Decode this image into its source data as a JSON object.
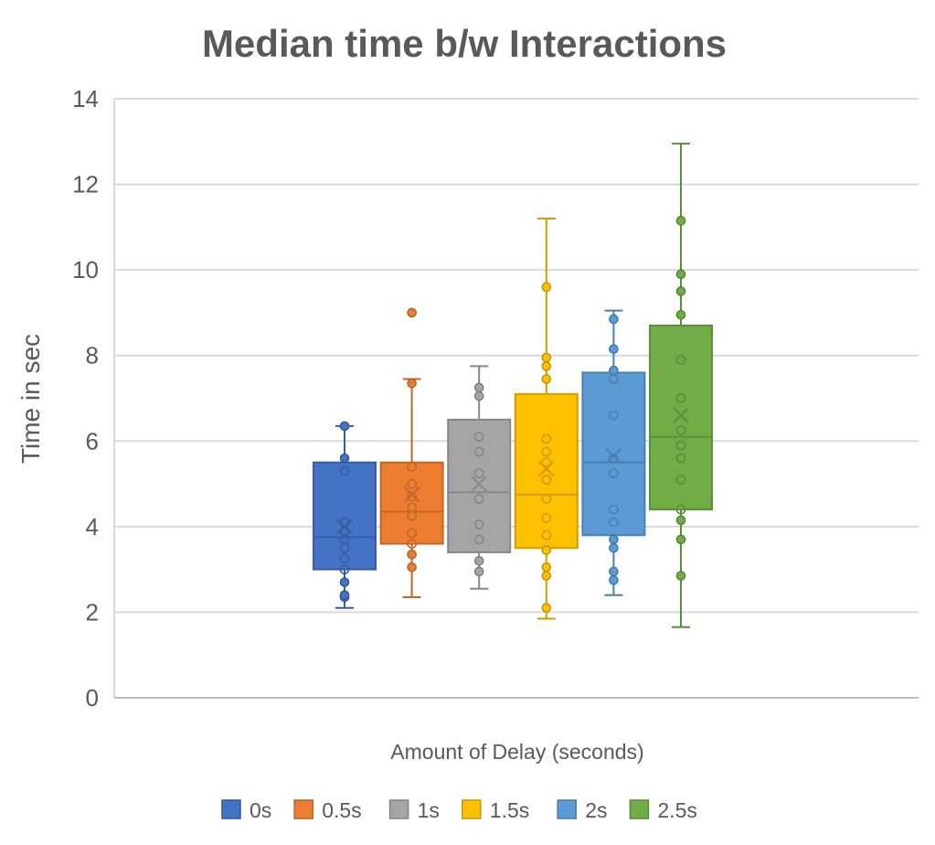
{
  "chart_data": {
    "type": "boxplot",
    "title": "Median time b/w Interactions",
    "xlabel": "Amount of Delay (seconds)",
    "ylabel": "Time in sec",
    "ylim": [
      0,
      14
    ],
    "yticks": [
      0,
      2,
      4,
      6,
      8,
      10,
      12,
      14
    ],
    "grid": true,
    "legend_position": "bottom",
    "series": [
      {
        "name": "0s",
        "color": "#4472C4",
        "whisker_low": 2.1,
        "q1": 3.0,
        "median": 3.75,
        "q3": 5.5,
        "whisker_high": 6.35,
        "mean": 4.0,
        "points": [
          2.35,
          2.4,
          2.7,
          3.0,
          3.25,
          3.5,
          3.7,
          3.9,
          4.1,
          5.3,
          5.6,
          6.35
        ],
        "outliers": []
      },
      {
        "name": "0.5s",
        "color": "#ED7D31",
        "whisker_low": 2.35,
        "q1": 3.6,
        "median": 4.35,
        "q3": 5.5,
        "whisker_high": 7.45,
        "mean": 4.75,
        "points": [
          3.05,
          3.35,
          3.6,
          3.85,
          4.25,
          4.45,
          4.7,
          5.0,
          5.4,
          7.35
        ],
        "outliers": [
          9.0
        ]
      },
      {
        "name": "1s",
        "color": "#A5A5A5",
        "whisker_low": 2.55,
        "q1": 3.4,
        "median": 4.8,
        "q3": 6.5,
        "whisker_high": 7.75,
        "mean": 5.0,
        "points": [
          2.95,
          3.2,
          3.7,
          4.05,
          4.65,
          5.25,
          5.75,
          6.1,
          7.05,
          7.25
        ],
        "outliers": []
      },
      {
        "name": "1.5s",
        "color": "#FFC000",
        "whisker_low": 1.85,
        "q1": 3.5,
        "median": 4.75,
        "q3": 7.1,
        "whisker_high": 11.2,
        "mean": 5.35,
        "points": [
          2.1,
          2.85,
          3.05,
          3.45,
          3.8,
          4.2,
          4.65,
          5.1,
          5.5,
          5.75,
          6.05,
          7.45,
          7.75,
          7.95,
          9.6
        ],
        "outliers": []
      },
      {
        "name": "2s",
        "color": "#5B9BD5",
        "whisker_low": 2.4,
        "q1": 3.8,
        "median": 5.5,
        "q3": 7.6,
        "whisker_high": 9.05,
        "mean": 5.65,
        "points": [
          2.75,
          2.95,
          3.5,
          3.7,
          4.1,
          4.4,
          5.25,
          5.6,
          6.6,
          7.45,
          7.65,
          8.15,
          8.85
        ],
        "outliers": []
      },
      {
        "name": "2.5s",
        "color": "#70AD47",
        "whisker_low": 1.65,
        "q1": 4.4,
        "median": 6.1,
        "q3": 8.7,
        "whisker_high": 12.95,
        "mean": 6.6,
        "points": [
          2.85,
          3.7,
          4.15,
          4.4,
          5.1,
          5.6,
          5.9,
          6.25,
          7.0,
          7.9,
          8.95,
          9.5,
          9.9,
          11.15
        ],
        "outliers": []
      }
    ]
  }
}
